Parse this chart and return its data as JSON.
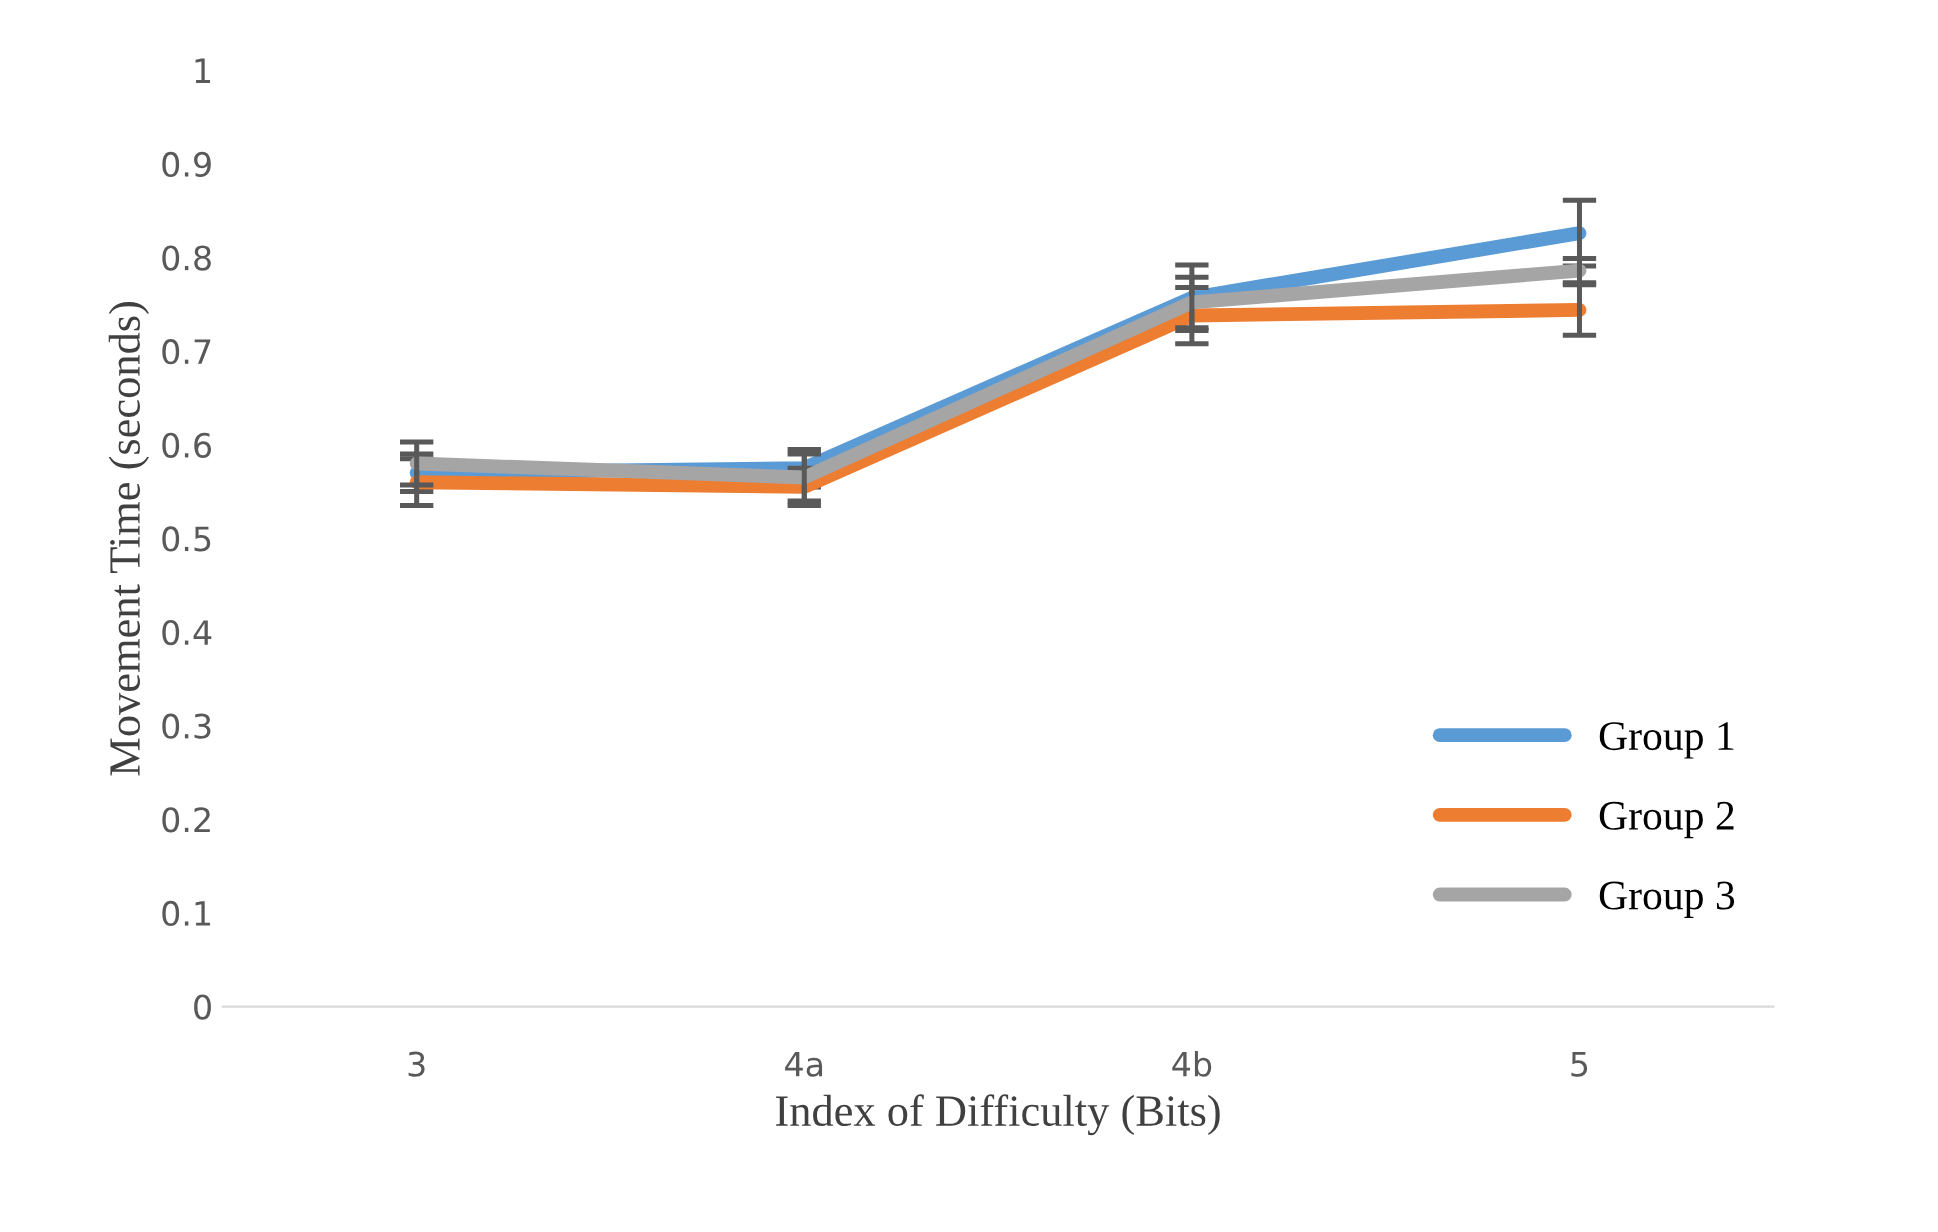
{
  "chart_data": {
    "type": "line",
    "xlabel": "Index of Difficulty (Bits)",
    "ylabel": "Movement Time (seconds)",
    "categories": [
      "3",
      "4a",
      "4b",
      "5"
    ],
    "series": [
      {
        "name": "Group 1",
        "color": "#5b9bd5",
        "values": [
          0.57,
          0.575,
          0.757,
          0.826
        ],
        "errors": [
          0.02,
          0.02,
          0.035,
          0.035
        ]
      },
      {
        "name": "Group 2",
        "color": "#ed7d31",
        "values": [
          0.56,
          0.555,
          0.738,
          0.744
        ],
        "errors": [
          0.025,
          0.02,
          0.03,
          0.027
        ]
      },
      {
        "name": "Group 3",
        "color": "#a5a5a5",
        "values": [
          0.58,
          0.565,
          0.752,
          0.786
        ],
        "errors": [
          0.023,
          0.025,
          0.027,
          0.013
        ]
      }
    ],
    "ylim": [
      0,
      1
    ],
    "yticks": [
      0,
      0.1,
      0.2,
      0.3,
      0.4,
      0.5,
      0.6,
      0.7,
      0.8,
      0.9,
      1
    ],
    "grid": false,
    "legend": "right",
    "marker": "none",
    "line_style": "solid"
  }
}
